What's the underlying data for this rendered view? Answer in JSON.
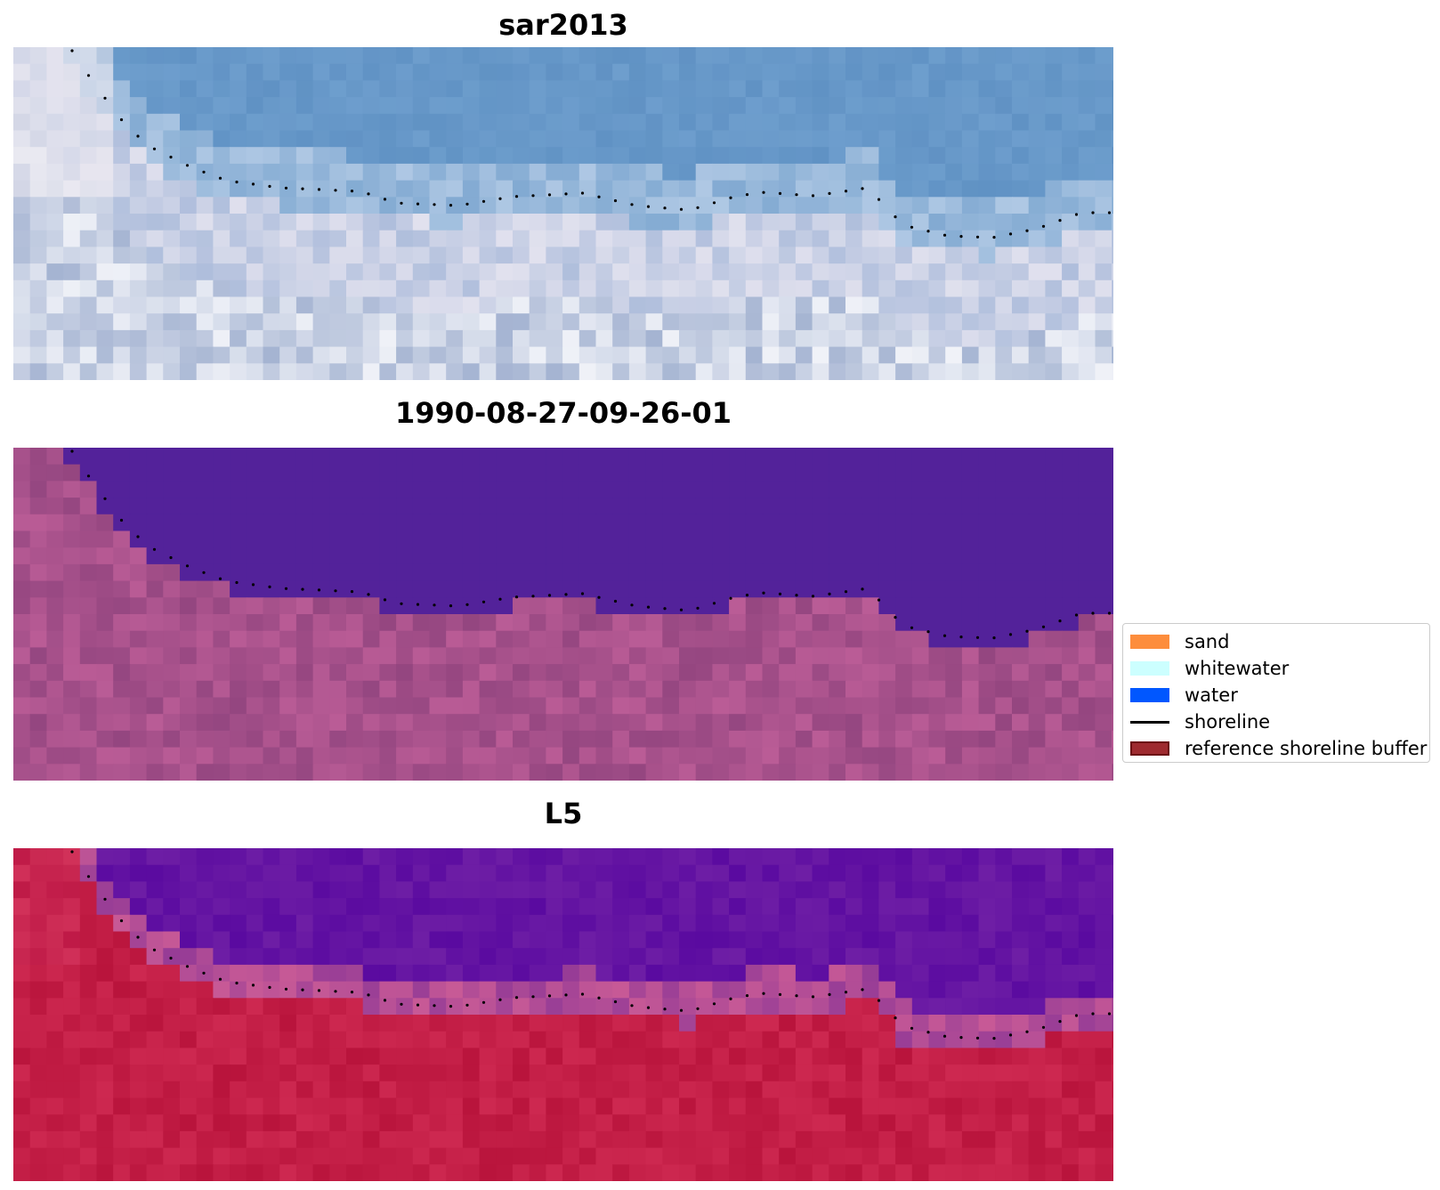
{
  "panels": [
    {
      "title": "sar2013",
      "style": "rgb"
    },
    {
      "title": "1990-08-27-09-26-01",
      "style": "classified"
    },
    {
      "title": "L5",
      "style": "index"
    }
  ],
  "legend": {
    "items": [
      {
        "label": "sand",
        "color": "#fd8d3c",
        "type": "patch"
      },
      {
        "label": "whitewater",
        "color": "#ccffff",
        "type": "patch"
      },
      {
        "label": "water",
        "color": "#0057ff",
        "type": "patch"
      },
      {
        "label": "shoreline",
        "color": "#000000",
        "type": "line"
      },
      {
        "label": "reference shoreline buffer",
        "color": "#9e2a2f",
        "edge": "#6b0e12",
        "type": "patch"
      }
    ]
  },
  "colors": {
    "water_class": "#53229a",
    "sand_class": "#a24f89",
    "index_water": "#5a0aa0",
    "index_land": "#c0173f",
    "shoreline_dots": "#000000"
  }
}
